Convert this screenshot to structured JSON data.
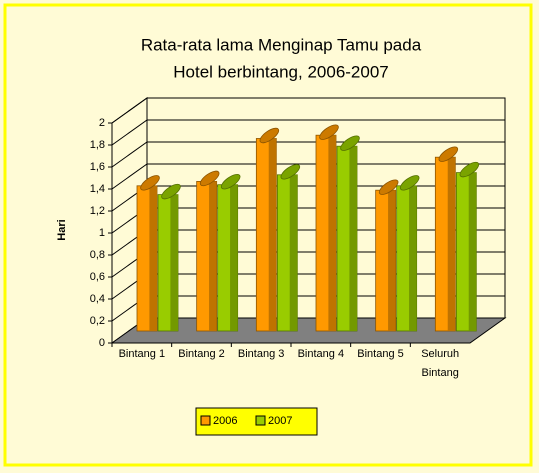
{
  "chart_data": {
    "type": "bar3d",
    "title": [
      "Rata-rata lama Menginap Tamu pada",
      "Hotel berbintang, 2006-2007"
    ],
    "y_label": "Hari",
    "categories": [
      "Bintang 1",
      "Bintang 2",
      "Bintang 3",
      "Bintang 4",
      "Bintang 5",
      "Seluruh Bintang"
    ],
    "series": [
      {
        "name": "2006",
        "color": "#ff9900",
        "values": [
          1.32,
          1.36,
          1.75,
          1.78,
          1.28,
          1.58
        ]
      },
      {
        "name": "2007",
        "color": "#99cc00",
        "values": [
          1.24,
          1.33,
          1.42,
          1.68,
          1.32,
          1.44
        ]
      }
    ],
    "ylim": [
      0,
      2
    ],
    "yticks": [
      0,
      {
        "value": 0.2,
        "label": "0,2"
      },
      {
        "value": 0.4,
        "label": "0,4"
      },
      {
        "value": 0.6,
        "label": "0,6"
      },
      {
        "value": 0.8,
        "label": "0,8"
      },
      1,
      {
        "value": 1.2,
        "label": "1,2"
      },
      {
        "value": 1.4,
        "label": "1,4"
      },
      {
        "value": 1.6,
        "label": "1,6"
      },
      {
        "value": 1.8,
        "label": "1,8"
      },
      2
    ],
    "grid": true
  }
}
